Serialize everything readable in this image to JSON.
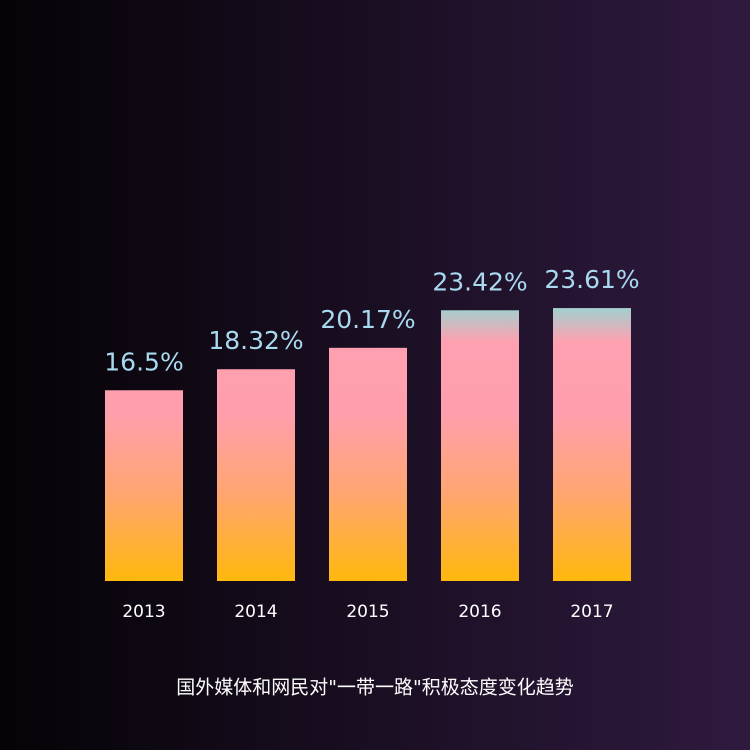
{
  "chart_data": {
    "type": "bar",
    "title": "国外媒体和网民对\"一带一路\"积极态度变化趋势",
    "categories": [
      "2013",
      "2014",
      "2015",
      "2016",
      "2017"
    ],
    "values": [
      16.5,
      18.32,
      20.17,
      23.42,
      23.61
    ],
    "value_labels": [
      "16.5%",
      "18.32%",
      "20.17%",
      "23.42%",
      "23.61%"
    ],
    "ylim": [
      0,
      25
    ]
  }
}
